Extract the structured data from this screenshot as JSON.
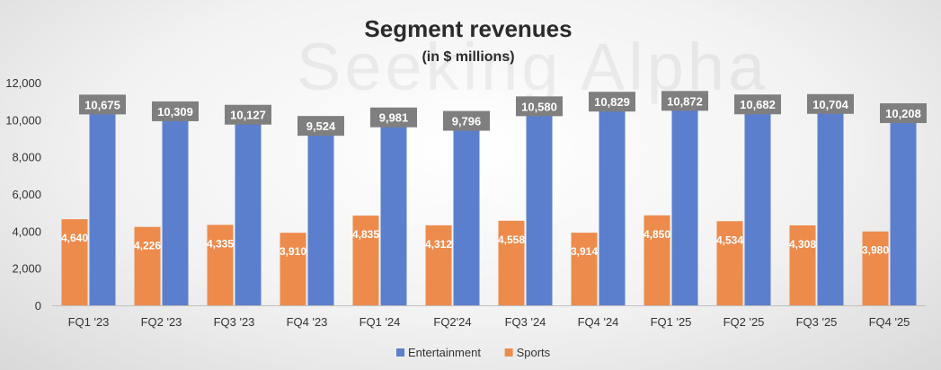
{
  "watermark": "Seeking Alpha",
  "chart_data": {
    "type": "bar",
    "title": "Segment revenues",
    "subtitle": "(in $ millions)",
    "categories": [
      "FQ1 '23",
      "FQ2 '23",
      "FQ3 '23",
      "FQ4 '23",
      "FQ1 '24",
      "FQ2'24",
      "FQ3 '24",
      "FQ4 '24",
      "FQ1 '25",
      "FQ2 '25",
      "FQ3 '25",
      "FQ4 '25"
    ],
    "series": [
      {
        "name": "Sports",
        "color": "#ED8B4C",
        "values": [
          4640,
          4226,
          4335,
          3910,
          4835,
          4312,
          4558,
          3914,
          4850,
          4534,
          4308,
          3980
        ],
        "labels": [
          "4,640",
          "4,226",
          "4,335",
          "3,910",
          "4,835",
          "4,312",
          "4,558",
          "3,914",
          "4,850",
          "4,534",
          "4,308",
          "3,980"
        ]
      },
      {
        "name": "Entertainment",
        "color": "#5B7FCC",
        "values": [
          10675,
          10309,
          10127,
          9524,
          9981,
          9796,
          10580,
          10829,
          10872,
          10682,
          10704,
          10208
        ],
        "labels": [
          "10,675",
          "10,309",
          "10,127",
          "9,524",
          "9,981",
          "9,796",
          "10,580",
          "10,829",
          "10,872",
          "10,682",
          "10,704",
          "10,208"
        ]
      }
    ],
    "legend": [
      "Entertainment",
      "Sports"
    ],
    "xlabel": "",
    "ylabel": "",
    "ylim": [
      0,
      12000
    ],
    "yticks": [
      0,
      2000,
      4000,
      6000,
      8000,
      10000,
      12000
    ],
    "ytick_labels": [
      "0",
      "2,000",
      "4,000",
      "6,000",
      "8,000",
      "10,000",
      "12,000"
    ],
    "grid": false,
    "legend_position": "bottom",
    "label_box_color": "#7F7F7F"
  }
}
